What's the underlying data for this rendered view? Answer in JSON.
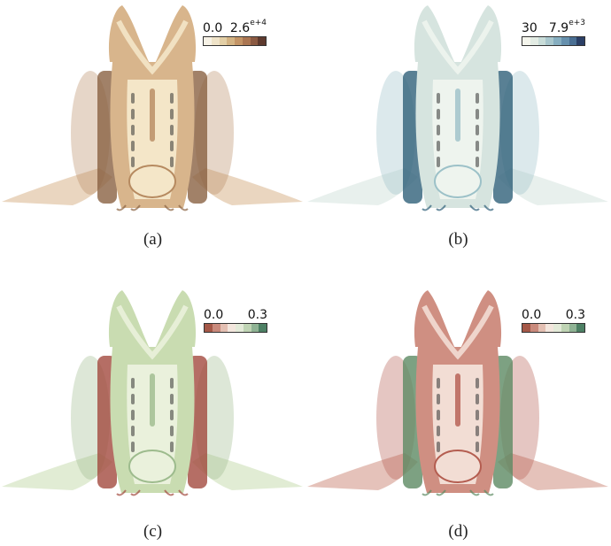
{
  "panels": [
    {
      "caption": "(a)",
      "colorbar": {
        "min": "0.0",
        "max": "2.6",
        "max_exp": "e+4",
        "colors": [
          "#f7f2e6",
          "#efe3c8",
          "#e3cfa6",
          "#d3b383",
          "#c39466",
          "#ab7652",
          "#8b5a42",
          "#5e3a2e"
        ]
      },
      "palette": {
        "base": "#d8b58c",
        "light": "#f4e6c8",
        "dark": "#8a6242",
        "mid": "#b68a60"
      }
    },
    {
      "caption": "(b)",
      "colorbar": {
        "min": "30",
        "max": "7.9",
        "max_exp": "e+3",
        "colors": [
          "#f4f5ec",
          "#e3ece4",
          "#c9ddd9",
          "#a9c7cd",
          "#86aec0",
          "#6690ad",
          "#4a6f93",
          "#2b3f66"
        ]
      },
      "palette": {
        "base": "#d6e4df",
        "light": "#eef4ee",
        "dark": "#2f6079",
        "mid": "#9cc1c8"
      }
    },
    {
      "caption": "(c)",
      "colorbar": {
        "min": "0.0",
        "max": "0.3",
        "max_exp": "",
        "colors": [
          "#a55848",
          "#c98a7c",
          "#e3bfb2",
          "#f3e6dd",
          "#e3ead8",
          "#bfd4b4",
          "#8fb394",
          "#4d8064"
        ]
      },
      "palette": {
        "base": "#c9dcb1",
        "light": "#eaf1dc",
        "dark": "#a34a3f",
        "mid": "#9dbb8d"
      }
    },
    {
      "caption": "(d)",
      "colorbar": {
        "min": "0.0",
        "max": "0.3",
        "max_exp": "",
        "colors": [
          "#a55848",
          "#c98a7c",
          "#e3bfb2",
          "#f3e6dd",
          "#e3ead8",
          "#bfd4b4",
          "#8fb394",
          "#4d8064"
        ]
      },
      "palette": {
        "base": "#cf8f82",
        "light": "#f2ddd4",
        "dark": "#5d8a63",
        "mid": "#b45d50"
      }
    }
  ]
}
